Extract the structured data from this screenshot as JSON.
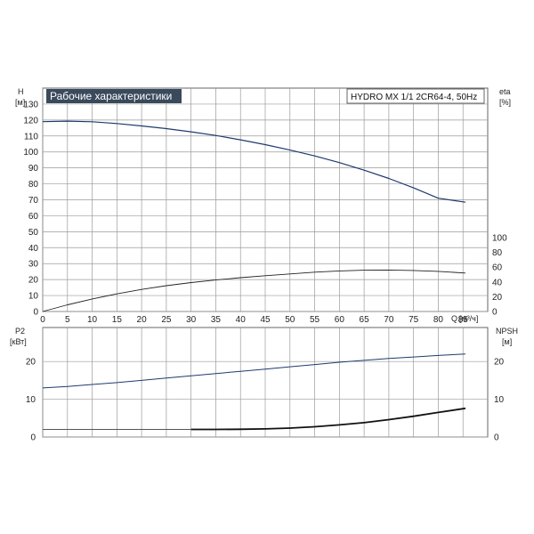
{
  "chart_data": [
    {
      "type": "line",
      "title": "Рабочие характеристики",
      "model_label": "HYDRO MX 1/1 2CR64-4, 50Hz",
      "xlabel": "Q [м³/ч]",
      "xlabel_name": "Q",
      "xlabel_unit": "[м³/ч]",
      "ylabel_left_name": "H",
      "ylabel_left_unit": "[м]",
      "ylabel_right_name": "eta",
      "ylabel_right_unit": "[%]",
      "xlim": [
        0,
        90
      ],
      "ylim_left": [
        0,
        140
      ],
      "ylim_right": [
        0,
        100
      ],
      "x_ticks": [
        0,
        5,
        10,
        15,
        20,
        25,
        30,
        35,
        40,
        45,
        50,
        55,
        60,
        65,
        70,
        75,
        80,
        85
      ],
      "y_left_ticks": [
        0,
        10,
        20,
        30,
        40,
        50,
        60,
        70,
        80,
        90,
        100,
        110,
        120,
        130
      ],
      "y_right_ticks": [
        0,
        20,
        40,
        60,
        80,
        100
      ],
      "grid": true,
      "series": [
        {
          "id": "head",
          "axis": "left",
          "color": "#1f3a6e",
          "x": [
            0,
            5,
            10,
            15,
            20,
            25,
            30,
            35,
            40,
            45,
            50,
            55,
            60,
            65,
            70,
            75,
            80,
            85.5
          ],
          "y": [
            119,
            119.3,
            118.9,
            117.8,
            116.3,
            114.6,
            112.6,
            110.3,
            107.6,
            104.6,
            101.2,
            97.5,
            93.3,
            88.6,
            83.4,
            77.5,
            71.0,
            68.5
          ]
        },
        {
          "id": "efficiency",
          "axis": "right",
          "color": "#222222",
          "x": [
            0,
            5,
            10,
            15,
            20,
            25,
            30,
            35,
            40,
            45,
            50,
            55,
            60,
            65,
            70,
            75,
            80,
            85.5
          ],
          "y": [
            0,
            9.0,
            17.0,
            23.9,
            29.9,
            34.9,
            39.1,
            42.6,
            45.8,
            48.4,
            50.9,
            53.2,
            54.9,
            55.9,
            56.1,
            55.6,
            54.3,
            52.0
          ]
        }
      ]
    },
    {
      "type": "line",
      "xlim": [
        0,
        90
      ],
      "ylabel_left_name": "P2",
      "ylabel_left_unit": "[кВт]",
      "ylabel_right_name": "NPSH",
      "ylabel_right_unit": "[м]",
      "ylim_left": [
        0,
        29
      ],
      "ylim_right": [
        0,
        29
      ],
      "y_left_ticks": [
        0,
        10,
        20
      ],
      "y_right_ticks": [
        0,
        10,
        20
      ],
      "grid": true,
      "series": [
        {
          "id": "power",
          "axis": "left",
          "color": "#1f3a6e",
          "x": [
            0,
            5,
            10,
            15,
            20,
            25,
            30,
            35,
            40,
            45,
            50,
            55,
            60,
            65,
            70,
            75,
            80,
            85.5
          ],
          "y": [
            13.0,
            13.4,
            13.9,
            14.4,
            15.0,
            15.6,
            16.2,
            16.8,
            17.4,
            18.0,
            18.6,
            19.2,
            19.8,
            20.3,
            20.8,
            21.2,
            21.6,
            22.0
          ]
        },
        {
          "id": "npsh",
          "axis": "right",
          "color": "#111111",
          "x": [
            0,
            30,
            35,
            40,
            45,
            50,
            55,
            60,
            65,
            70,
            75,
            80,
            85.5
          ],
          "y": [
            2.0,
            2.0,
            2.0,
            2.05,
            2.15,
            2.35,
            2.7,
            3.2,
            3.8,
            4.6,
            5.5,
            6.5,
            7.6
          ]
        }
      ]
    }
  ]
}
